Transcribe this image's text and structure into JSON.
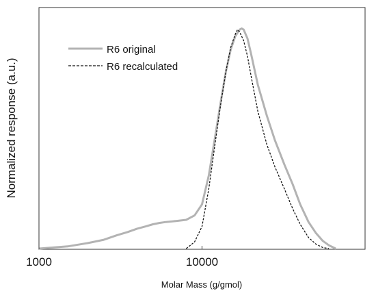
{
  "chart_data": {
    "type": "line",
    "xscale": "log",
    "xlim": [
      1000,
      100000
    ],
    "ylim": [
      0,
      1
    ],
    "xticks": [
      {
        "value": 1000,
        "label": "1000"
      },
      {
        "value": 10000,
        "label": "10000"
      }
    ],
    "xlabel": "Molar Mass (g/gmol)",
    "ylabel": "Normalized response (a.u.)",
    "grid": false,
    "legend_position": "top-left",
    "series": [
      {
        "name": "R6 original",
        "style": "solid",
        "color": "#b3b3b3",
        "x": [
          1000,
          1500,
          2000,
          2500,
          3000,
          3500,
          4000,
          4500,
          5000,
          5500,
          6000,
          7000,
          8000,
          9000,
          10000,
          11000,
          12000,
          13000,
          14000,
          15000,
          16000,
          17000,
          17500,
          18000,
          19000,
          20000,
          22000,
          25000,
          28000,
          32000,
          36000,
          40000,
          45000,
          50000,
          55000,
          60000,
          66000
        ],
        "y": [
          0.0,
          0.01,
          0.025,
          0.04,
          0.06,
          0.075,
          0.09,
          0.1,
          0.11,
          0.116,
          0.12,
          0.125,
          0.13,
          0.15,
          0.2,
          0.33,
          0.5,
          0.66,
          0.8,
          0.9,
          0.96,
          0.99,
          0.995,
          0.99,
          0.95,
          0.88,
          0.74,
          0.6,
          0.49,
          0.38,
          0.29,
          0.2,
          0.12,
          0.07,
          0.035,
          0.015,
          0.0
        ]
      },
      {
        "name": "R6 recalculated",
        "style": "dashed",
        "color": "#111111",
        "x": [
          8000,
          9000,
          10000,
          11000,
          12000,
          13000,
          14000,
          15000,
          16000,
          16500,
          17000,
          18000,
          19000,
          20000,
          22000,
          25000,
          28000,
          32000,
          36000,
          40000,
          45000,
          50000,
          55000,
          60000
        ],
        "y": [
          0.0,
          0.03,
          0.1,
          0.27,
          0.47,
          0.65,
          0.8,
          0.91,
          0.97,
          0.99,
          0.98,
          0.94,
          0.87,
          0.78,
          0.62,
          0.47,
          0.37,
          0.27,
          0.18,
          0.11,
          0.05,
          0.02,
          0.005,
          0.0
        ]
      }
    ]
  }
}
